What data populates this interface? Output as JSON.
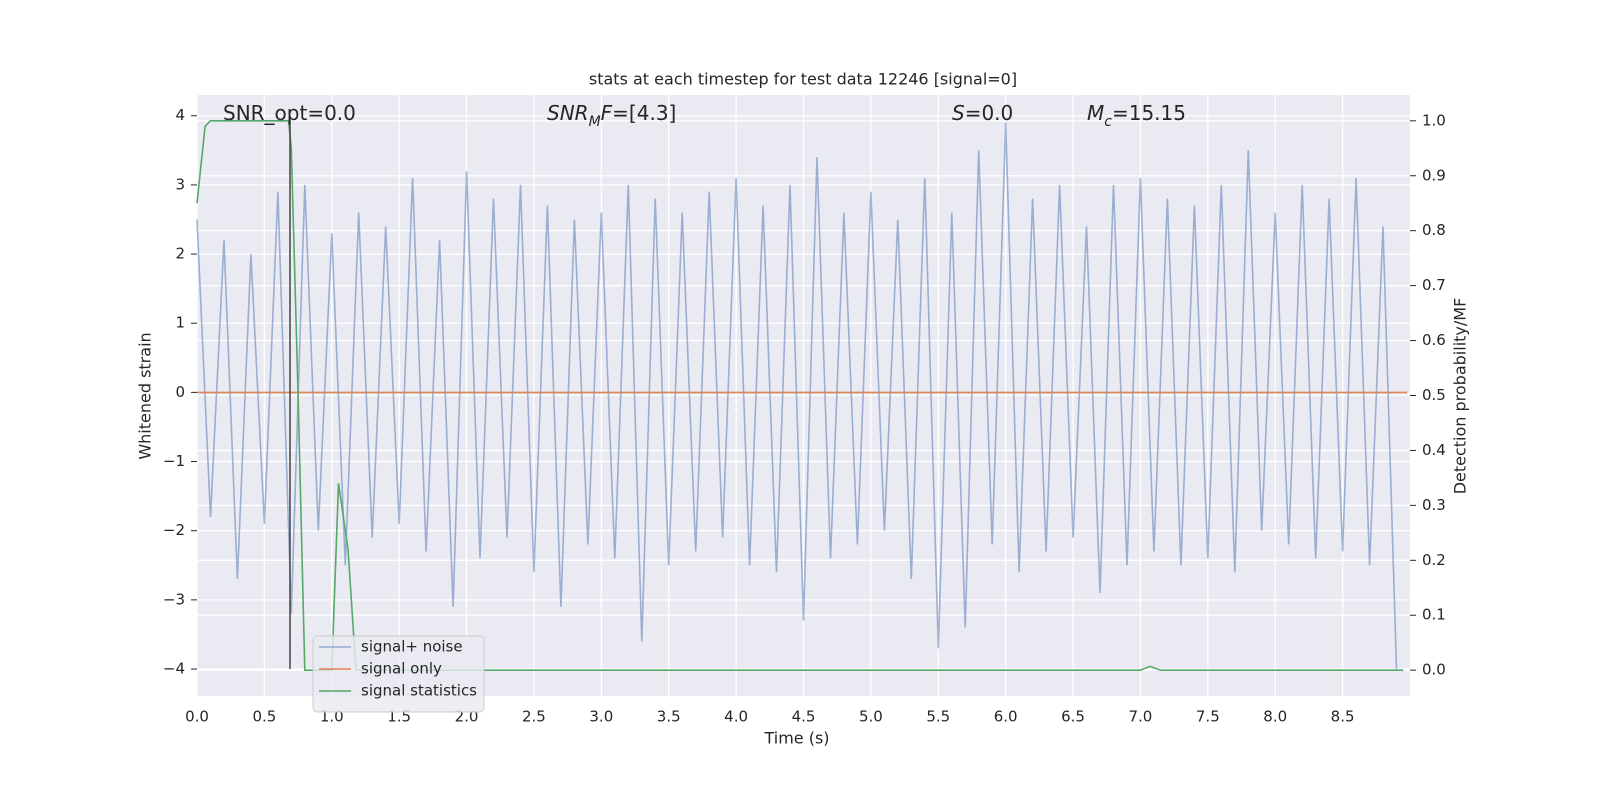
{
  "chart_data": {
    "type": "line",
    "title": "stats at each timestep for test data 12246 [signal=0]",
    "xlabel": "Time (s)",
    "ylabel": "Whitened strain",
    "y2label": "Detection probability/MF",
    "xlim": [
      0,
      9.0
    ],
    "ylim": [
      -4.39,
      4.3
    ],
    "y2lim": [
      -0.047,
      1.047
    ],
    "xticks": [
      {
        "value": 0,
        "label": "0.0"
      },
      {
        "value": 0.5,
        "label": "0.5"
      },
      {
        "value": 1,
        "label": "1.0"
      },
      {
        "value": 1.5,
        "label": "1.5"
      },
      {
        "value": 2,
        "label": "2.0"
      },
      {
        "value": 2.5,
        "label": "2.5"
      },
      {
        "value": 3,
        "label": "3.0"
      },
      {
        "value": 3.5,
        "label": "3.5"
      },
      {
        "value": 4,
        "label": "4.0"
      },
      {
        "value": 4.5,
        "label": "4.5"
      },
      {
        "value": 5,
        "label": "5.0"
      },
      {
        "value": 5.5,
        "label": "5.5"
      },
      {
        "value": 6,
        "label": "6.0"
      },
      {
        "value": 6.5,
        "label": "6.5"
      },
      {
        "value": 7,
        "label": "7.0"
      },
      {
        "value": 7.5,
        "label": "7.5"
      },
      {
        "value": 8,
        "label": "8.0"
      },
      {
        "value": 8.5,
        "label": "8.5"
      }
    ],
    "yticks": [
      {
        "value": -4,
        "label": "−4"
      },
      {
        "value": -3,
        "label": "−3"
      },
      {
        "value": -2,
        "label": "−2"
      },
      {
        "value": -1,
        "label": "−1"
      },
      0,
      1,
      2,
      3,
      4
    ],
    "y2ticks": [
      {
        "value": 0,
        "label": "0.0"
      },
      {
        "value": 0.1,
        "label": "0.1"
      },
      {
        "value": 0.2,
        "label": "0.2"
      },
      {
        "value": 0.3,
        "label": "0.3"
      },
      {
        "value": 0.4,
        "label": "0.4"
      },
      {
        "value": 0.5,
        "label": "0.5"
      },
      {
        "value": 0.6,
        "label": "0.6"
      },
      {
        "value": 0.7,
        "label": "0.7"
      },
      {
        "value": 0.8,
        "label": "0.8"
      },
      {
        "value": 0.9,
        "label": "0.9"
      },
      {
        "value": 1,
        "label": "1.0"
      }
    ],
    "grid": true,
    "legend": "lower left",
    "series": [
      {
        "name": "signal+ noise",
        "color": "#4c72b0",
        "opacity": 0.5,
        "x": [
          0,
          0.1,
          0.2,
          0.3,
          0.4,
          0.5,
          0.6,
          0.7,
          0.8,
          0.9,
          1,
          1.1,
          1.2,
          1.3,
          1.4,
          1.5,
          1.6,
          1.7,
          1.8,
          1.9,
          2,
          2.1,
          2.2,
          2.3,
          2.4,
          2.5,
          2.6,
          2.7,
          2.8,
          2.9,
          3,
          3.1,
          3.2,
          3.3,
          3.4,
          3.5,
          3.6,
          3.7,
          3.8,
          3.9,
          4,
          4.1,
          4.2,
          4.3,
          4.4,
          4.5,
          4.6,
          4.7,
          4.8,
          4.9,
          5,
          5.1,
          5.2,
          5.3,
          5.4,
          5.5,
          5.6,
          5.7,
          5.8,
          5.9,
          6,
          6.1,
          6.2,
          6.3,
          6.4,
          6.5,
          6.6,
          6.7,
          6.8,
          6.9,
          7,
          7.1,
          7.2,
          7.3,
          7.4,
          7.5,
          7.6,
          7.7,
          7.8,
          7.9,
          8,
          8.1,
          8.2,
          8.3,
          8.4,
          8.5,
          8.6,
          8.7,
          8.8,
          8.9
        ],
        "values": [
          2.5,
          -1.8,
          2.2,
          -2.7,
          2.0,
          -1.9,
          2.9,
          -3.2,
          3.0,
          -2.0,
          2.3,
          -2.5,
          2.6,
          -2.1,
          2.4,
          -1.9,
          3.1,
          -2.3,
          2.2,
          -3.1,
          3.2,
          -2.4,
          2.8,
          -2.1,
          3.0,
          -2.6,
          2.7,
          -3.1,
          2.5,
          -2.2,
          2.6,
          -2.4,
          3.0,
          -3.6,
          2.8,
          -2.5,
          2.6,
          -2.3,
          2.9,
          -2.1,
          3.1,
          -2.5,
          2.7,
          -2.6,
          3.0,
          -3.3,
          3.4,
          -2.4,
          2.6,
          -2.2,
          2.9,
          -2.0,
          2.5,
          -2.7,
          3.1,
          -3.7,
          2.6,
          -3.4,
          3.5,
          -2.2,
          3.9,
          -2.6,
          2.8,
          -2.3,
          3.0,
          -2.1,
          2.4,
          -2.9,
          3.0,
          -2.5,
          3.1,
          -2.3,
          2.8,
          -2.5,
          2.7,
          -2.4,
          3.0,
          -2.6,
          3.5,
          -2.0,
          2.6,
          -2.2,
          3.0,
          -2.4,
          2.8,
          -2.3,
          3.1,
          -2.5,
          2.4,
          -4.0
        ]
      },
      {
        "name": "signal only",
        "color": "#dd8452",
        "opacity": 1,
        "x": [
          0,
          8.98
        ],
        "values": [
          0,
          0
        ]
      },
      {
        "name": "signal statistics",
        "color": "#55a868",
        "opacity": 1,
        "axis": "y2",
        "x": [
          0,
          0.06,
          0.1,
          0.68,
          0.7,
          0.75,
          0.8,
          1.0,
          1.05,
          1.12,
          1.18,
          7.0,
          7.07,
          7.15,
          8.95
        ],
        "values": [
          0.85,
          0.99,
          1.0,
          1.0,
          0.95,
          0.5,
          0.0,
          0.0,
          0.34,
          0.22,
          0.0,
          0.0,
          0.007,
          0.0,
          0.0
        ]
      }
    ],
    "vline": {
      "x": 0.69,
      "ymin": -4,
      "ymax": 4,
      "color": "#444444"
    },
    "annotations": [
      {
        "parts": [
          {
            "text": "SNR_opt=0.0",
            "style": "normal"
          }
        ]
      },
      {
        "parts": [
          {
            "text": "SNR",
            "style": "italic"
          },
          {
            "text": "M",
            "style": "sub"
          },
          {
            "text": "F",
            "style": "italic"
          },
          {
            "text": "=[4.3]",
            "style": "normal"
          }
        ]
      },
      {
        "parts": [
          {
            "text": "S",
            "style": "italic"
          },
          {
            "text": "=0.0",
            "style": "normal"
          }
        ]
      },
      {
        "parts": [
          {
            "text": "M",
            "style": "italic"
          },
          {
            "text": "c",
            "style": "sub"
          },
          {
            "text": "=15.15",
            "style": "normal"
          }
        ]
      }
    ]
  }
}
